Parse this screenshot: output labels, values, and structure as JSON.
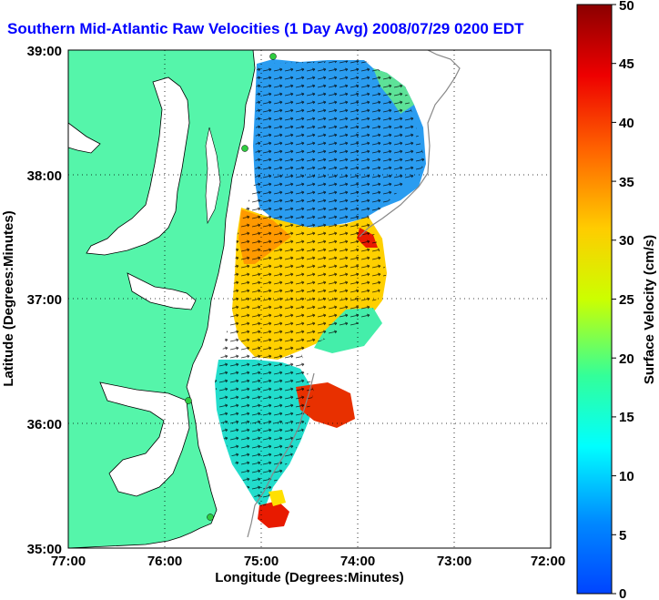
{
  "title": "Southern Mid-Atlantic Raw Velocities (1 Day Avg) 2008/07/29 0200 EDT",
  "axes": {
    "xlabel": "Longitude (Degrees:Minutes)",
    "ylabel": "Latitude (Degrees:Minutes)",
    "x_ticks": [
      "77:00",
      "76:00",
      "75:00",
      "74:00",
      "73:00",
      "72:00"
    ],
    "y_ticks": [
      "39:00",
      "38:00",
      "37:00",
      "36:00",
      "35:00"
    ]
  },
  "colorbar": {
    "label": "Surface Velocity (cm/s)",
    "min": 0,
    "max": 50,
    "ticks": [
      "0",
      "5",
      "10",
      "15",
      "20",
      "25",
      "30",
      "35",
      "40",
      "45",
      "50"
    ]
  },
  "colors": {
    "land": "#55f5aa",
    "title": "#0000ff",
    "background": "#ffffff"
  }
}
